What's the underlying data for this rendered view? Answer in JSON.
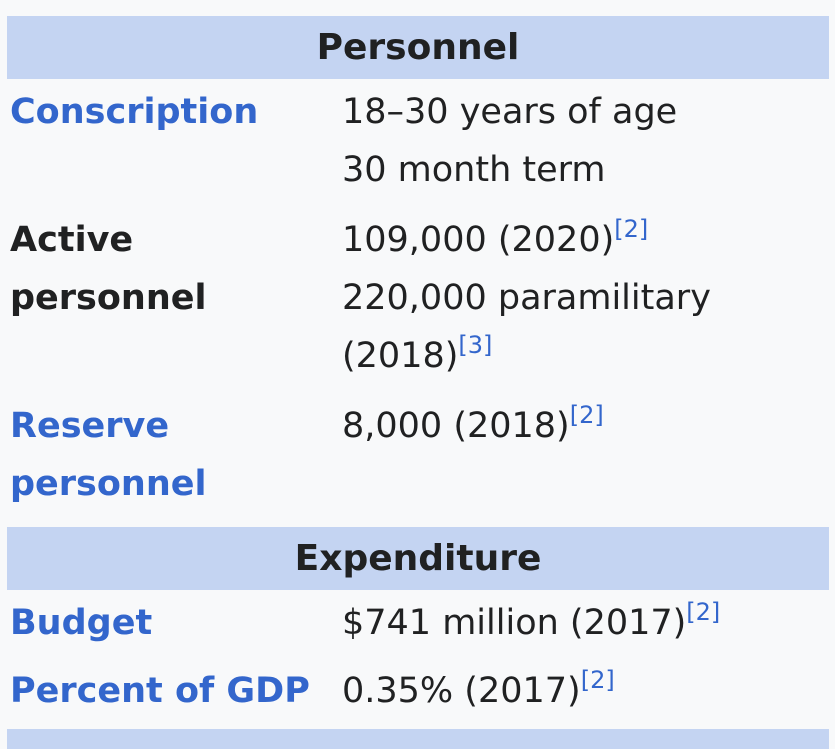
{
  "personnel": {
    "header": "Personnel",
    "conscription": {
      "label": "Conscription",
      "line1": "18–30 years of age",
      "line2": "30 month term"
    },
    "active": {
      "label": "Active personnel",
      "line1": "109,000 (2020)",
      "line1_ref": "[2]",
      "line2": "220,000 paramilitary",
      "line3": "(2018)",
      "line3_ref": "[3]"
    },
    "reserve": {
      "label_line1": "Reserve",
      "label_line2": "personnel",
      "value": "8,000 (2018)",
      "value_ref": "[2]"
    }
  },
  "expenditure": {
    "header": "Expenditure",
    "budget": {
      "label": "Budget",
      "value": "$741 million (2017)",
      "value_ref": "[2]"
    },
    "gdp": {
      "label": "Percent of GDP",
      "value": "0.35% (2017)",
      "value_ref": "[2]"
    }
  },
  "colors": {
    "header_bg": "#c4d4f2",
    "link": "#3366cc",
    "page_bg": "#f8f9fa"
  }
}
